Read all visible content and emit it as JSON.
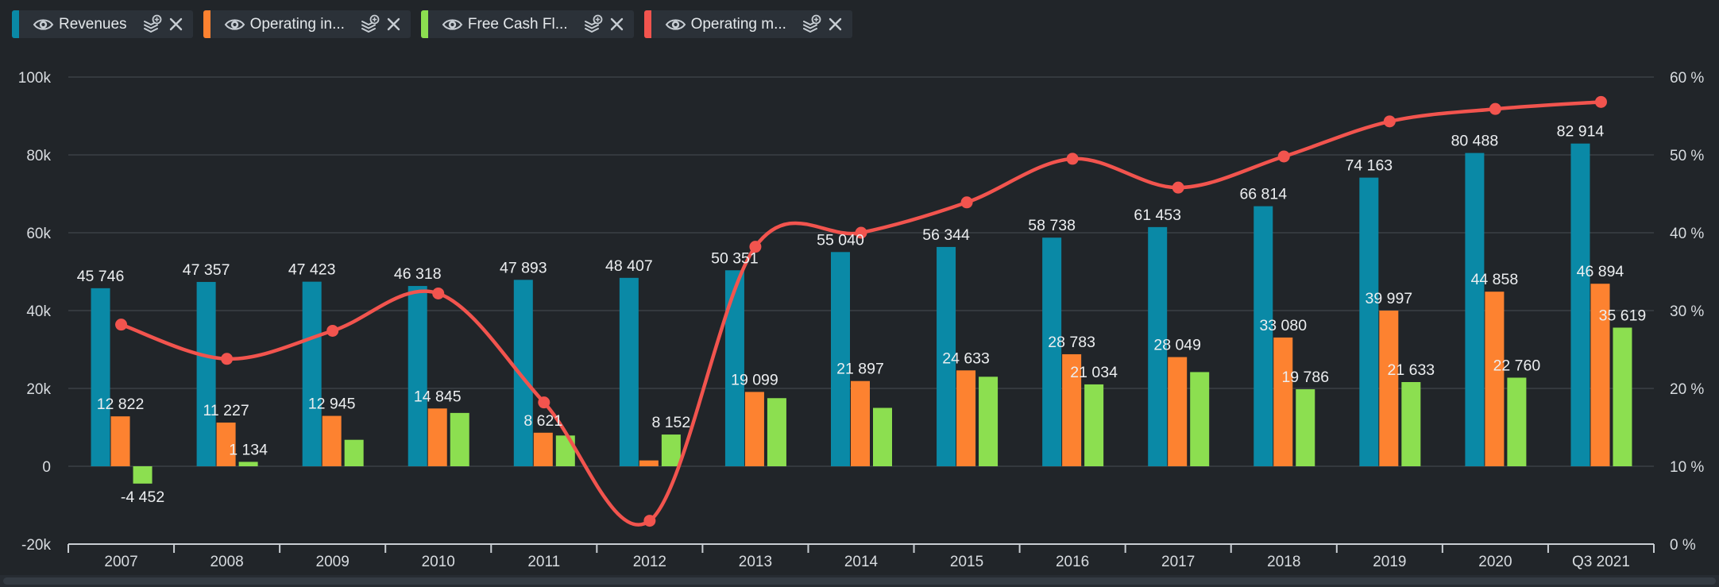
{
  "legend": {
    "chips": [
      {
        "id": "revenues",
        "label": "Revenues",
        "color": "#0a89a6",
        "icons": [
          "eye-icon",
          "layers-dollar-icon",
          "close-icon"
        ]
      },
      {
        "id": "operating-income",
        "label": "Operating in...",
        "color": "#fd8230",
        "icons": [
          "eye-icon",
          "layers-dollar-icon",
          "close-icon"
        ]
      },
      {
        "id": "free-cash-flow",
        "label": "Free Cash Fl...",
        "color": "#8cdf50",
        "icons": [
          "eye-icon",
          "layers-dollar-icon",
          "close-icon"
        ]
      },
      {
        "id": "operating-margin",
        "label": "Operating m...",
        "color": "#f2544e",
        "icons": [
          "eye-icon",
          "layers-dollar-icon",
          "close-icon"
        ]
      }
    ]
  },
  "chart_data": {
    "type": "combo-bar-line",
    "title": "",
    "grid": true,
    "legend_position": "top-left",
    "categories": [
      "2007",
      "2008",
      "2009",
      "2010",
      "2011",
      "2012",
      "2013",
      "2014",
      "2015",
      "2016",
      "2017",
      "2018",
      "2019",
      "2020",
      "Q3 2021"
    ],
    "left_axis": {
      "min": -20000,
      "max": 100000,
      "tick_step": 20000,
      "tick_labels": [
        "100k",
        "80k",
        "60k",
        "40k",
        "20k",
        "0",
        "-20k"
      ]
    },
    "right_axis": {
      "min": 0,
      "max": 60,
      "tick_step": 10,
      "tick_labels": [
        "60 %",
        "50 %",
        "40 %",
        "30 %",
        "20 %",
        "10 %",
        "0 %"
      ]
    },
    "series": [
      {
        "id": "revenues",
        "name": "Revenues",
        "type": "bar",
        "axis": "left",
        "color": "#0a89a6",
        "values": [
          45746,
          47357,
          47423,
          46318,
          47893,
          48407,
          50351,
          55040,
          56344,
          58738,
          61453,
          66814,
          74163,
          80488,
          82914
        ],
        "labels": [
          "45 746",
          "47 357",
          "47 423",
          "46 318",
          "47 893",
          "48 407",
          "50 351",
          "55 040",
          "56 344",
          "58 738",
          "61 453",
          "66 814",
          "74 163",
          "80 488",
          "82 914"
        ]
      },
      {
        "id": "operating-income",
        "name": "Operating income",
        "type": "bar",
        "axis": "left",
        "color": "#fd8230",
        "values": [
          12822,
          11227,
          12945,
          14845,
          8621,
          1500,
          19099,
          21897,
          24633,
          28783,
          28049,
          33080,
          39997,
          44858,
          46894
        ],
        "labels": [
          "12 822",
          "11 227",
          "12 945",
          "14 845",
          "8 621",
          null,
          "19 099",
          "21 897",
          "24 633",
          "28 783",
          "28 049",
          "33 080",
          "39 997",
          "44 858",
          "46 894"
        ]
      },
      {
        "id": "free-cash-flow",
        "name": "Free Cash Flow",
        "type": "bar",
        "axis": "left",
        "color": "#8cdf50",
        "values": [
          -4452,
          1134,
          6800,
          13700,
          7900,
          8152,
          17500,
          15000,
          23000,
          21034,
          24200,
          19786,
          21633,
          22760,
          35619
        ],
        "labels": [
          "-4 452",
          "1 134",
          null,
          null,
          null,
          "8 152",
          null,
          null,
          null,
          "21 034",
          null,
          "19 786",
          "21 633",
          "22 760",
          "35 619"
        ]
      },
      {
        "id": "operating-margin",
        "name": "Operating margin",
        "type": "line",
        "axis": "right",
        "color": "#f2544e",
        "values": [
          28.2,
          23.8,
          27.4,
          32.2,
          18.2,
          3.0,
          38.2,
          40.0,
          43.9,
          49.5,
          45.8,
          49.8,
          54.3,
          55.9,
          56.8
        ],
        "labels": [
          null,
          null,
          null,
          null,
          null,
          null,
          null,
          null,
          null,
          null,
          null,
          null,
          null,
          null,
          null
        ]
      }
    ]
  },
  "colors": {
    "background": "#212529",
    "grid": "#3a4046",
    "axis_line": "#c9ced3",
    "bar_label_text": "#eceef0",
    "axis_text": "#d8dce0",
    "chip_bg": "#2b3138",
    "chip_text": "#e4e8eb",
    "icon": "#c7cdd3",
    "scrollbar_track": "#272c32",
    "scrollbar_thumb": "#343b43"
  }
}
